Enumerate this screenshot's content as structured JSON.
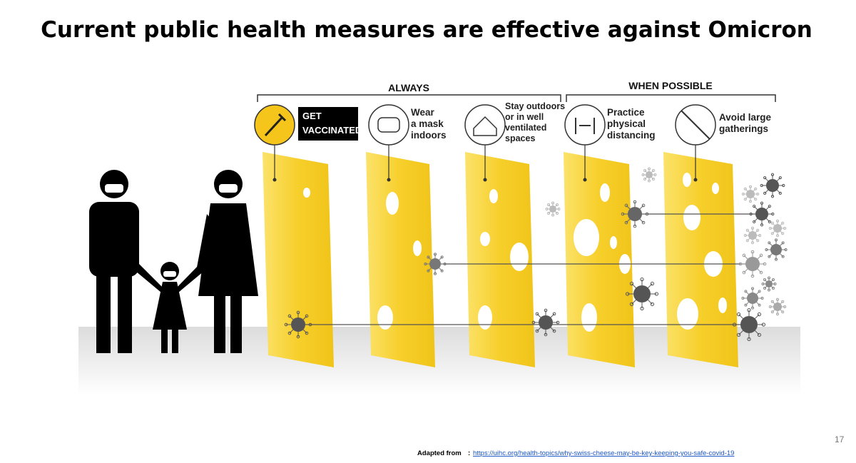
{
  "header": {
    "title": "Current public health measures are effective against Omicron"
  },
  "groups": [
    "ALWAYS",
    "WHEN POSSIBLE"
  ],
  "layers": [
    {
      "label": [
        "GET",
        "VACCINATED"
      ]
    },
    {
      "label": [
        "Wear",
        "a mask",
        "indoors"
      ]
    },
    {
      "label": [
        "Stay outdoors",
        "or in well",
        "ventilated",
        "spaces"
      ]
    },
    {
      "label": [
        "Practice",
        "physical",
        "distancing"
      ]
    },
    {
      "label": [
        "Avoid large",
        "gatherings"
      ]
    }
  ],
  "footer": {
    "source_prefix": "Adapted from",
    "source_url": "https://uihc.org/health-topics/why-swiss-cheese-may-be-key-keeping-you-safe-covid-19",
    "page_number": "17"
  }
}
